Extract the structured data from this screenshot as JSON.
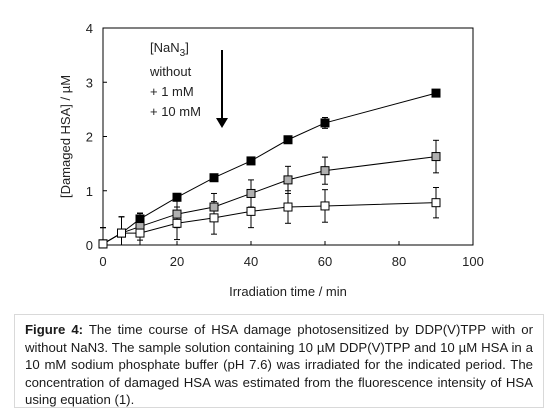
{
  "chart_data": {
    "type": "scatter",
    "xlabel": "Irradiation time / min",
    "ylabel": "[Damaged HSA] / µM",
    "xlim": [
      0,
      100
    ],
    "ylim": [
      0,
      4
    ],
    "x_ticks": [
      "0",
      "20",
      "40",
      "60",
      "80",
      "100"
    ],
    "y_ticks": [
      "0",
      "1",
      "2",
      "3",
      "4"
    ],
    "grid": false,
    "legend": {
      "title_prefix": "[NaN",
      "title_subscript": "3",
      "title_suffix": "]",
      "entries": [
        "without",
        "+ 1 mM",
        "+ 10 mM"
      ],
      "placement": "top-left",
      "arrow": "down"
    },
    "series": [
      {
        "name": "without",
        "marker": "filled-square",
        "color": "#000000",
        "x": [
          0,
          5,
          10,
          20,
          30,
          40,
          50,
          60,
          90
        ],
        "y": [
          0.02,
          0.22,
          0.48,
          0.88,
          1.24,
          1.55,
          1.94,
          2.25,
          2.8
        ],
        "err": [
          0.3,
          0.3,
          0.1,
          0.07,
          0.05,
          0.05,
          0.05,
          0.1,
          0.05
        ]
      },
      {
        "name": "+ 1 mM",
        "marker": "gray-square",
        "color": "#b0b0b0",
        "x": [
          0,
          5,
          10,
          20,
          30,
          40,
          50,
          60,
          90
        ],
        "y": [
          0.02,
          0.22,
          0.34,
          0.57,
          0.7,
          0.95,
          1.2,
          1.37,
          1.63
        ],
        "err": [
          0.3,
          0.3,
          0.25,
          0.25,
          0.25,
          0.25,
          0.25,
          0.25,
          0.3
        ]
      },
      {
        "name": "+ 10 mM",
        "marker": "open-square",
        "color": "#ffffff",
        "x": [
          0,
          5,
          10,
          20,
          30,
          40,
          50,
          60,
          90
        ],
        "y": [
          0.02,
          0.22,
          0.22,
          0.4,
          0.5,
          0.62,
          0.7,
          0.72,
          0.78
        ],
        "err": [
          0.3,
          0.3,
          0.3,
          0.3,
          0.3,
          0.3,
          0.3,
          0.3,
          0.28
        ]
      }
    ]
  },
  "caption": {
    "label": "Figure 4:",
    "text": " The time course of HSA damage photosensitized by DDP(V)TPP with or without NaN3. The sample solution containing 10 µM DDP(V)TPP and 10 µM HSA in a 10 mM sodium phosphate buffer (pH 7.6) was irradiated for the indicated period. The concentration of damaged HSA was estimated from the fluorescence intensity of HSA using equation (1)."
  }
}
